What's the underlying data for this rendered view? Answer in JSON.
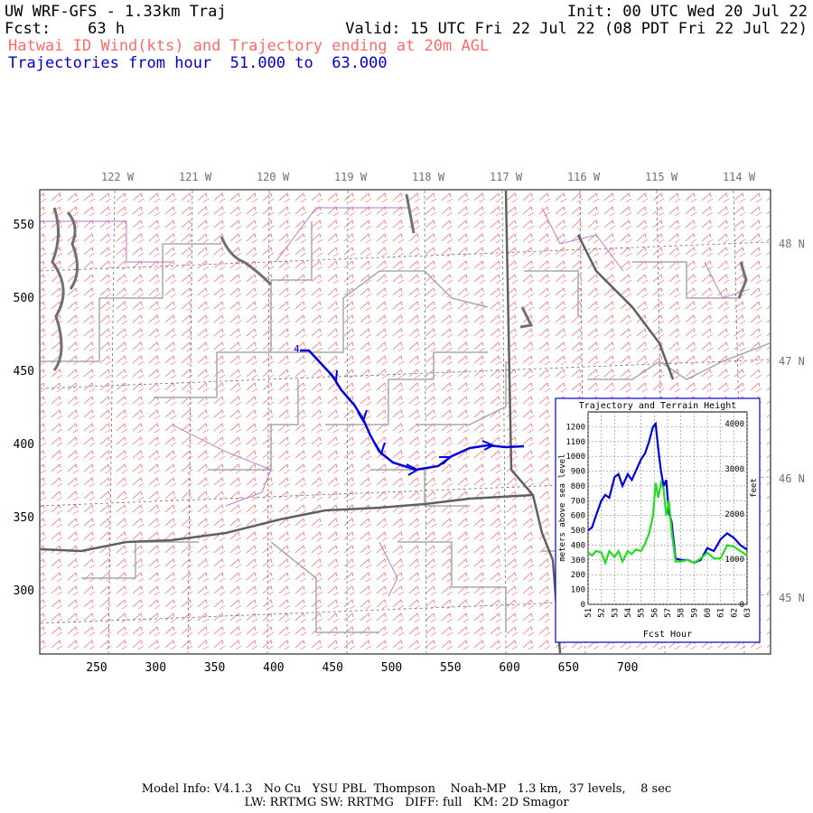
{
  "header": {
    "model_title": "UW WRF-GFS - 1.33km Traj",
    "init": "Init: 00 UTC Wed 20 Jul 22",
    "fcst_label": "Fcst:",
    "fcst_hours": "63 h",
    "valid": "Valid: 15 UTC Fri 22 Jul 22 (08 PDT Fri 22 Jul 22)",
    "subtitle": "Hatwai ID Wind(kts) and Trajectory ending at 20m AGL",
    "traj_line": "Trajectories from hour  51.000 to  63.000"
  },
  "map": {
    "lon_labels": [
      "122 W",
      "121 W",
      "120 W",
      "119 W",
      "118 W",
      "117 W",
      "116 W",
      "115 W",
      "114 W"
    ],
    "lat_labels": [
      "48 N",
      "47 N",
      "46 N",
      "45 N"
    ],
    "x_ticks": [
      "250",
      "300",
      "350",
      "400",
      "450",
      "500",
      "550",
      "600",
      "650",
      "700"
    ],
    "y_ticks": [
      "550",
      "500",
      "450",
      "400",
      "350",
      "300"
    ],
    "trajectory_label": "4",
    "colors": {
      "wind_barbs": "#ff6a6a",
      "trajectory": "#0000dd",
      "borders": "#a0a0a0",
      "coast": "#707070",
      "counties": "#b070d0"
    }
  },
  "inset": {
    "title": "Trajectory and Terrain Height",
    "left_axis_label": "meters above sea level",
    "right_axis_label": "feet",
    "x_label": "Fcst Hour",
    "chart_data": {
      "type": "line",
      "title": "Trajectory and Terrain Height",
      "xlabel": "Fcst Hour",
      "ylabel": "meters above sea level",
      "xlim": [
        51,
        63
      ],
      "ylim": [
        0,
        1300
      ],
      "x_ticks": [
        "51",
        "52",
        "53",
        "54",
        "55",
        "56",
        "57",
        "58",
        "59",
        "60",
        "61",
        "62",
        "63"
      ],
      "y_ticks": [
        "0",
        "100",
        "200",
        "300",
        "400",
        "500",
        "600",
        "700",
        "800",
        "900",
        "1000",
        "1100",
        "1200"
      ],
      "y2_ticks": [
        "0",
        "1000",
        "2000",
        "3000",
        "4000"
      ],
      "series": [
        {
          "color": "#0000dd",
          "x": [
            51,
            51.3,
            51.6,
            52,
            52.3,
            52.6,
            53,
            53.3,
            53.6,
            54,
            54.3,
            54.6,
            55,
            55.3,
            55.6,
            55.9,
            56.1,
            56.3,
            56.5,
            56.7,
            56.9,
            57.1,
            57.3,
            57.6,
            58,
            58.5,
            59,
            59.5,
            60,
            60.5,
            61,
            61.5,
            62,
            62.5,
            63
          ],
          "y": [
            500,
            520,
            600,
            700,
            740,
            720,
            860,
            880,
            800,
            880,
            840,
            900,
            980,
            1020,
            1100,
            1200,
            1220,
            1050,
            900,
            800,
            840,
            620,
            560,
            310,
            300,
            300,
            280,
            300,
            380,
            360,
            440,
            480,
            450,
            400,
            370
          ]
        },
        {
          "color": "#22dd22",
          "x": [
            51,
            51.3,
            51.6,
            52,
            52.3,
            52.6,
            53,
            53.3,
            53.6,
            54,
            54.3,
            54.6,
            55,
            55.3,
            55.6,
            55.9,
            56.1,
            56.3,
            56.5,
            56.7,
            56.9,
            57.1,
            57.3,
            57.6,
            58,
            58.5,
            59,
            59.5,
            60,
            60.5,
            61,
            61.5,
            62,
            62.5,
            63
          ],
          "y": [
            350,
            330,
            360,
            350,
            280,
            360,
            320,
            360,
            290,
            360,
            340,
            370,
            360,
            410,
            480,
            600,
            820,
            720,
            820,
            780,
            600,
            700,
            500,
            290,
            290,
            300,
            280,
            310,
            350,
            310,
            310,
            400,
            390,
            360,
            330
          ]
        }
      ]
    }
  },
  "footer": {
    "line1": "Model Info: V4.1.3   No Cu   YSU PBL  Thompson    Noah-MP   1.3 km,  37 levels,    8 sec",
    "line2": "LW: RRTMG SW: RRTMG   DIFF: full   KM: 2D Smagor"
  }
}
